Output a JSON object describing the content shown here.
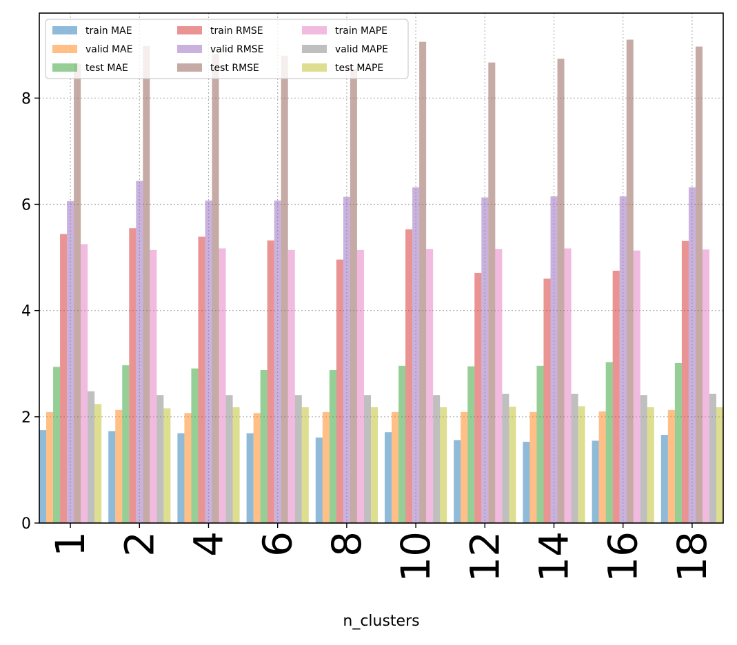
{
  "chart_data": {
    "type": "bar",
    "title": "",
    "xlabel": "n_clusters",
    "ylabel": "",
    "categories": [
      "1",
      "2",
      "4",
      "6",
      "8",
      "10",
      "12",
      "14",
      "16",
      "18"
    ],
    "ylim": [
      0,
      9.6
    ],
    "yticks": [
      0,
      2,
      4,
      6,
      8
    ],
    "grid": true,
    "legend_position": "top-left",
    "series": [
      {
        "name": "train MAE",
        "color": "#1f77b4",
        "values": [
          1.75,
          1.73,
          1.69,
          1.69,
          1.61,
          1.71,
          1.56,
          1.53,
          1.55,
          1.66
        ]
      },
      {
        "name": "valid MAE",
        "color": "#ff7f0e",
        "values": [
          2.09,
          2.13,
          2.07,
          2.07,
          2.09,
          2.09,
          2.09,
          2.09,
          2.1,
          2.13
        ]
      },
      {
        "name": "test MAE",
        "color": "#2ca02c",
        "values": [
          2.94,
          2.97,
          2.91,
          2.88,
          2.88,
          2.96,
          2.95,
          2.96,
          3.03,
          3.01
        ]
      },
      {
        "name": "train RMSE",
        "color": "#d62728",
        "values": [
          5.44,
          5.55,
          5.39,
          5.32,
          4.96,
          5.53,
          4.71,
          4.6,
          4.75,
          5.31
        ]
      },
      {
        "name": "valid RMSE",
        "color": "#9467bd",
        "values": [
          6.06,
          6.44,
          6.07,
          6.07,
          6.14,
          6.32,
          6.13,
          6.15,
          6.15,
          6.32
        ]
      },
      {
        "name": "test RMSE",
        "color": "#8c564b",
        "values": [
          8.65,
          8.98,
          8.83,
          8.8,
          8.55,
          9.06,
          8.67,
          8.74,
          9.1,
          8.97
        ]
      },
      {
        "name": "train MAPE",
        "color": "#e377c2",
        "values": [
          5.25,
          5.14,
          5.17,
          5.14,
          5.14,
          5.16,
          5.16,
          5.17,
          5.13,
          5.15
        ]
      },
      {
        "name": "valid MAPE",
        "color": "#7f7f7f",
        "values": [
          2.48,
          2.41,
          2.41,
          2.41,
          2.41,
          2.41,
          2.43,
          2.43,
          2.41,
          2.43
        ]
      },
      {
        "name": "test MAPE",
        "color": "#bcbd22",
        "values": [
          2.24,
          2.16,
          2.18,
          2.18,
          2.18,
          2.18,
          2.19,
          2.2,
          2.18,
          2.18
        ]
      }
    ]
  }
}
